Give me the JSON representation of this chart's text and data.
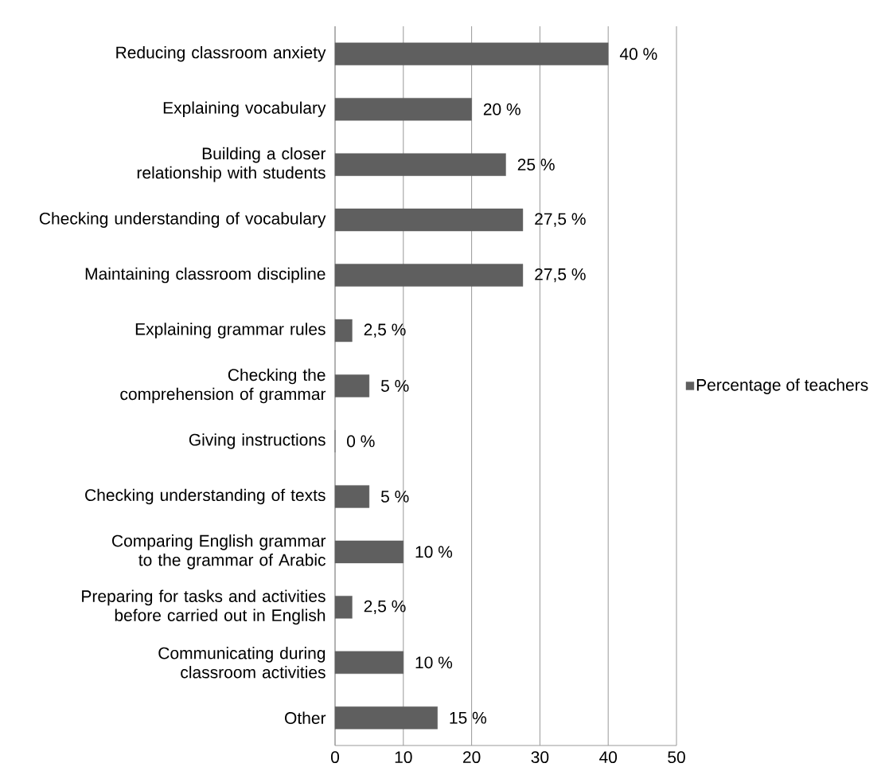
{
  "chart_data": {
    "type": "bar",
    "orientation": "horizontal",
    "categories": [
      "Reducing classroom anxiety",
      "Explaining vocabulary",
      "Building a closer relationship with students",
      "Checking understanding of vocabulary",
      "Maintaining classroom discipline",
      "Explaining grammar rules",
      "Checking the comprehension of grammar",
      "Giving instructions",
      "Checking understanding of texts",
      "Comparing English grammar to the grammar of Arabic",
      "Preparing for tasks and activities before carried out in English",
      "Communicating during classroom activities",
      "Other"
    ],
    "series": [
      {
        "name": "Percentage of teachers",
        "color": "#5f5f5f",
        "values": [
          40,
          20,
          25,
          27.5,
          27.5,
          2.5,
          5,
          0,
          5,
          10,
          2.5,
          10,
          15
        ],
        "value_labels": [
          "40 %",
          "20 %",
          "25 %",
          "27,5 %",
          "27,5 %",
          "2,5 %",
          "5 %",
          "0 %",
          "5 %",
          "10 %",
          "2,5 %",
          "10 %",
          "15 %"
        ]
      }
    ],
    "xlim": [
      0,
      50
    ],
    "xticks": [
      0,
      10,
      20,
      30,
      40,
      50
    ],
    "grid": "x",
    "legend": "right"
  }
}
